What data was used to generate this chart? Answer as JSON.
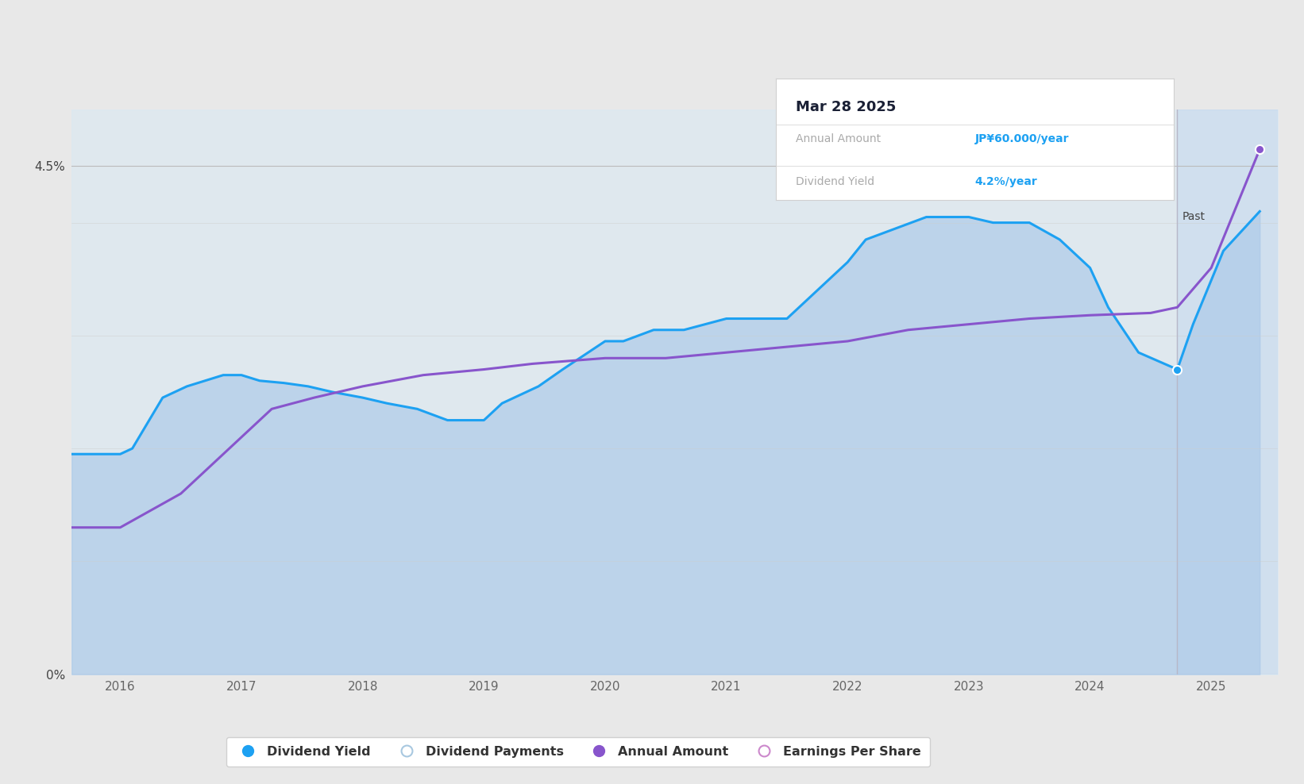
{
  "background_color": "#e8e8e8",
  "chart_area_color": "#e8e8e8",
  "ylim_min": 0.0,
  "ylim_max": 0.05,
  "xmin": 2015.6,
  "xmax": 2025.55,
  "past_cutoff": 2024.72,
  "dividend_yield_color": "#1da1f2",
  "annual_amount_color": "#8855cc",
  "fill_color_main": "#c2d8ef",
  "fill_color_future": "#c8ddf2",
  "grid_color": "#cccccc",
  "past_region_color": "#ccddf0",
  "dividend_yield_x": [
    2015.6,
    2016.0,
    2016.1,
    2016.35,
    2016.55,
    2016.85,
    2017.0,
    2017.15,
    2017.35,
    2017.55,
    2017.75,
    2018.0,
    2018.2,
    2018.45,
    2018.7,
    2019.0,
    2019.15,
    2019.45,
    2019.65,
    2020.0,
    2020.15,
    2020.4,
    2020.65,
    2021.0,
    2021.2,
    2021.5,
    2021.75,
    2022.0,
    2022.15,
    2022.4,
    2022.65,
    2023.0,
    2023.2,
    2023.5,
    2023.75,
    2024.0,
    2024.15,
    2024.4,
    2024.72,
    2024.85,
    2025.1,
    2025.4
  ],
  "dividend_yield_y": [
    0.0195,
    0.0195,
    0.02,
    0.0245,
    0.0255,
    0.0265,
    0.0265,
    0.026,
    0.0258,
    0.0255,
    0.025,
    0.0245,
    0.024,
    0.0235,
    0.0225,
    0.0225,
    0.024,
    0.0255,
    0.027,
    0.0295,
    0.0295,
    0.0305,
    0.0305,
    0.0315,
    0.0315,
    0.0315,
    0.034,
    0.0365,
    0.0385,
    0.0395,
    0.0405,
    0.0405,
    0.04,
    0.04,
    0.0385,
    0.036,
    0.0325,
    0.0285,
    0.027,
    0.031,
    0.0375,
    0.041
  ],
  "annual_amount_x": [
    2015.6,
    2016.0,
    2016.5,
    2017.0,
    2017.25,
    2017.6,
    2018.0,
    2018.5,
    2019.0,
    2019.4,
    2020.0,
    2020.5,
    2021.0,
    2021.5,
    2022.0,
    2022.5,
    2023.0,
    2023.5,
    2024.0,
    2024.5,
    2024.72,
    2025.0,
    2025.4
  ],
  "annual_amount_y": [
    0.013,
    0.013,
    0.016,
    0.021,
    0.0235,
    0.0245,
    0.0255,
    0.0265,
    0.027,
    0.0275,
    0.028,
    0.028,
    0.0285,
    0.029,
    0.0295,
    0.0305,
    0.031,
    0.0315,
    0.0318,
    0.032,
    0.0325,
    0.036,
    0.0465
  ],
  "tooltip_title": "Mar 28 2025",
  "tooltip_annual_label": "Annual Amount",
  "tooltip_annual_value": "JP¥60.000/year",
  "tooltip_annual_color": "#1da1f2",
  "tooltip_yield_label": "Dividend Yield",
  "tooltip_yield_value": "4.2%/year",
  "tooltip_yield_color": "#1da1f2",
  "xtick_labels": [
    "2016",
    "2017",
    "2018",
    "2019",
    "2020",
    "2021",
    "2022",
    "2023",
    "2024",
    "2025"
  ],
  "xtick_values": [
    2016,
    2017,
    2018,
    2019,
    2020,
    2021,
    2022,
    2023,
    2024,
    2025
  ],
  "ytick_labels": [
    "0%",
    "4.5%"
  ],
  "ytick_values": [
    0.0,
    0.045
  ],
  "legend_items": [
    {
      "label": "Dividend Yield",
      "color": "#1da1f2",
      "filled": true
    },
    {
      "label": "Dividend Payments",
      "color": "#a8c8e0",
      "filled": false
    },
    {
      "label": "Annual Amount",
      "color": "#8855cc",
      "filled": true
    },
    {
      "label": "Earnings Per Share",
      "color": "#cc88cc",
      "filled": false
    }
  ]
}
